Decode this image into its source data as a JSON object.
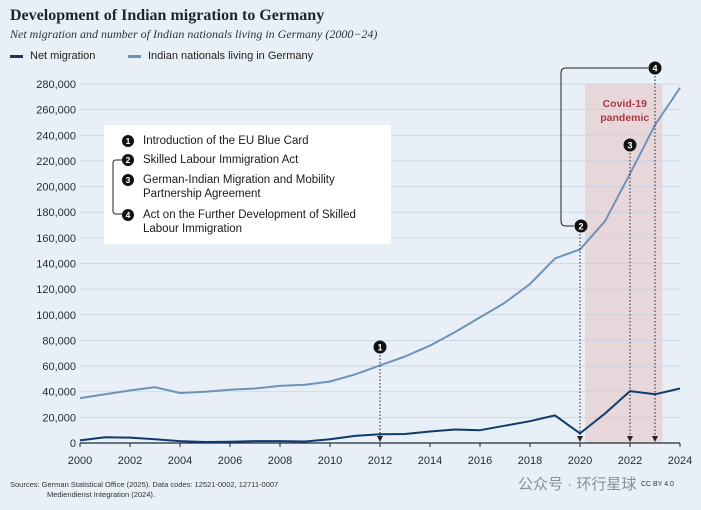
{
  "title": "Development of Indian migration to Germany",
  "subtitle": "Net migration and number of Indian nationals living in Germany (2000−24)",
  "legend": {
    "net_migration": "Net migration",
    "nationals": "Indian nationals living in Germany"
  },
  "callouts": [
    {
      "num": "1",
      "text": "Introduction of the EU Blue Card"
    },
    {
      "num": "2",
      "text": "Skilled Labour Immigration Act"
    },
    {
      "num": "3",
      "text": "German-Indian Migration and Mobility Partnership Agreement"
    },
    {
      "num": "4",
      "text": "Act on the Further Development of Skilled Labour Immigration"
    }
  ],
  "pandemic_label": "Covid-19 pandemic",
  "source": {
    "line1": "Sources: German Statistical Office (2025). Data codes: 12521-0002, 12711-0007",
    "line2": "Mediendienst Integration (2024)."
  },
  "watermark": "公众号 · 环行星球",
  "license": "CC BY 4.0",
  "colors": {
    "net_migration": "#0d3b6e",
    "nationals": "#6e93b8",
    "pandemic_band": "#e7d7da",
    "pandemic_text": "#a83a45",
    "background": "#e9eff6",
    "grid": "#c6d3e1"
  },
  "chart_data": {
    "type": "line",
    "x": [
      2000,
      2001,
      2002,
      2003,
      2004,
      2005,
      2006,
      2007,
      2008,
      2009,
      2010,
      2011,
      2012,
      2013,
      2014,
      2015,
      2016,
      2017,
      2018,
      2019,
      2020,
      2021,
      2022,
      2023,
      2024
    ],
    "series": [
      {
        "name": "Net migration",
        "values": [
          2000,
          4500,
          4200,
          3000,
          1500,
          800,
          1000,
          1500,
          1500,
          1200,
          3000,
          5500,
          6800,
          7000,
          9000,
          10500,
          10000,
          13500,
          17000,
          21500,
          7500,
          23000,
          40500,
          38000,
          42500
        ]
      },
      {
        "name": "Indian nationals living in Germany",
        "values": [
          35000,
          38000,
          41000,
          43500,
          39000,
          40000,
          41500,
          42500,
          44500,
          45500,
          48000,
          53500,
          60500,
          67500,
          76000,
          86500,
          98000,
          109500,
          124000,
          144000,
          151000,
          173000,
          210000,
          248000,
          277000
        ]
      }
    ],
    "xlim": [
      2000,
      2024
    ],
    "ylim": [
      0,
      280000
    ],
    "yticks": [
      0,
      20000,
      40000,
      60000,
      80000,
      100000,
      120000,
      140000,
      160000,
      180000,
      200000,
      220000,
      240000,
      260000,
      280000
    ],
    "yticklabels": [
      "0",
      "20,000",
      "40,000",
      "60,000",
      "80,000",
      "100,000",
      "120,000",
      "140,000",
      "160,000",
      "180,000",
      "200,000",
      "220,000",
      "240,000",
      "260,000",
      "280,000"
    ],
    "xticks": [
      2000,
      2002,
      2004,
      2006,
      2008,
      2010,
      2012,
      2014,
      2016,
      2018,
      2020,
      2022,
      2024
    ],
    "xticklabels": [
      "2000",
      "2002",
      "2004",
      "2006",
      "2008",
      "2010",
      "2012",
      "2014",
      "2016",
      "2018",
      "2020",
      "2022",
      "2024"
    ],
    "pandemic_range": [
      2020.2,
      2023.3
    ],
    "event_markers": [
      {
        "num": "1",
        "year": 2012
      },
      {
        "num": "2",
        "year": 2020
      },
      {
        "num": "3",
        "year": 2022
      },
      {
        "num": "4",
        "year": 2023
      }
    ],
    "grid": true,
    "legend_position": "top-left"
  }
}
